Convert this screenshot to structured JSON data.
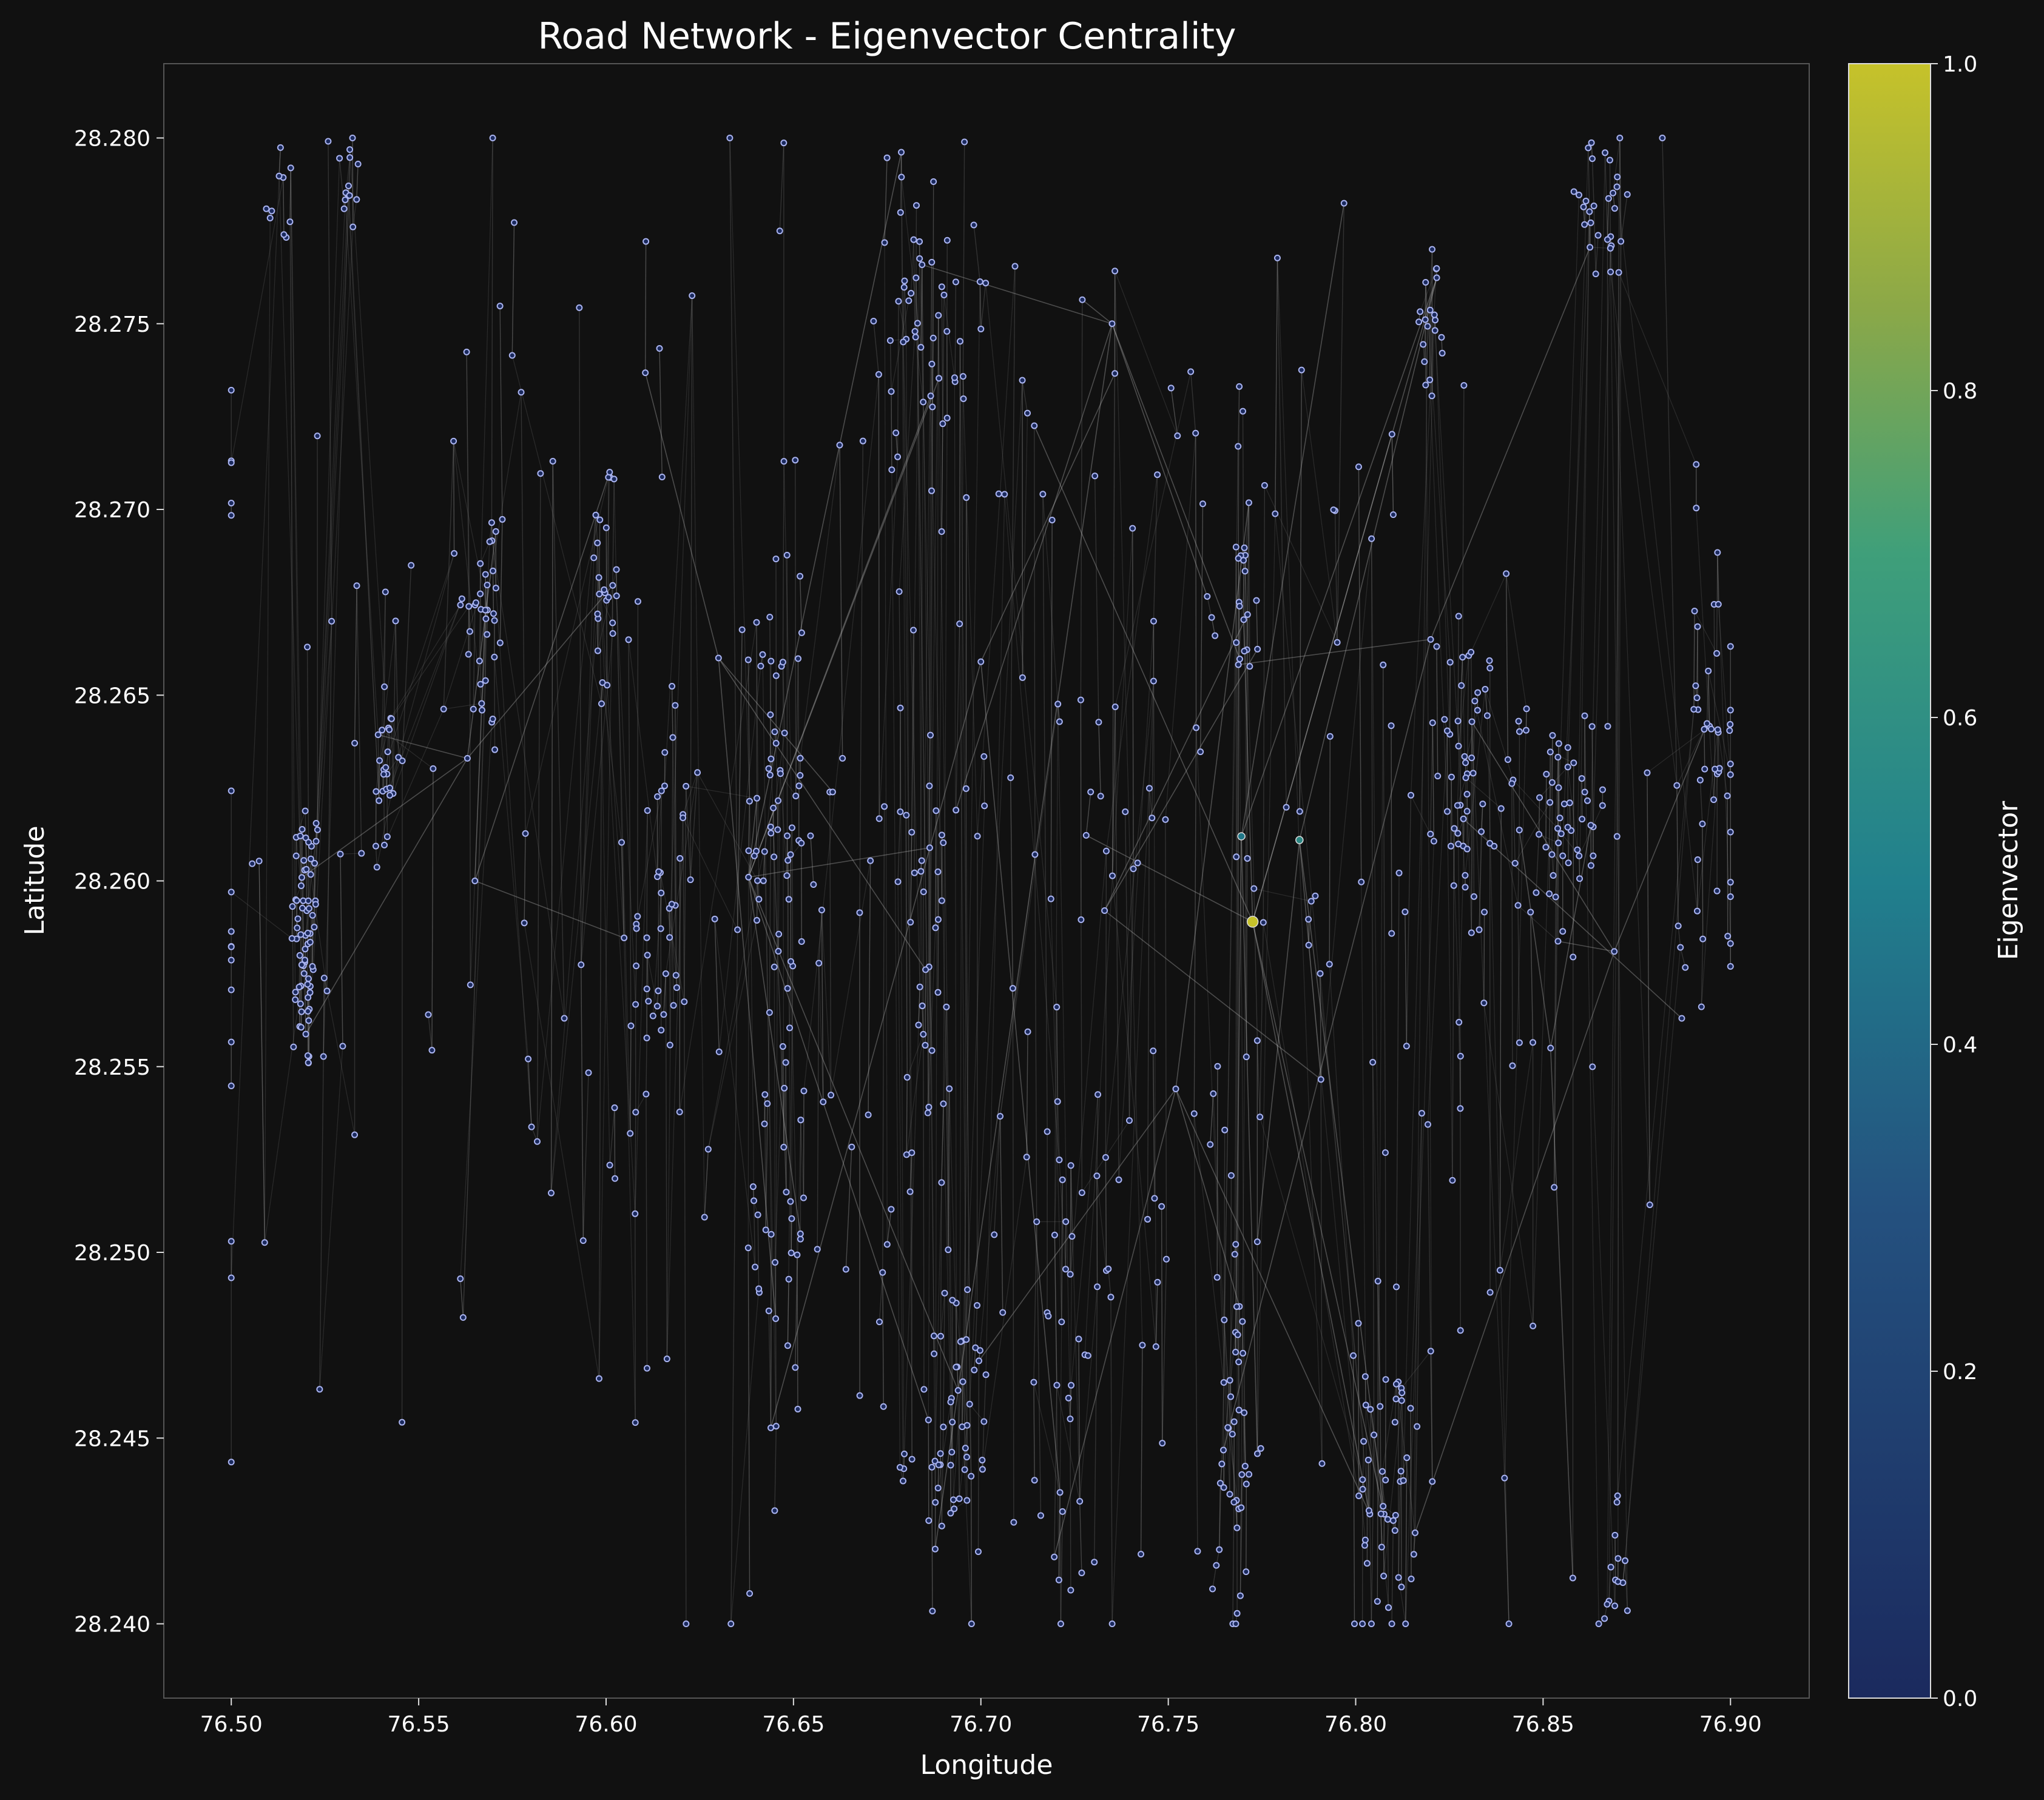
{
  "chart_data": {
    "type": "scatter",
    "title": "Road Network - Eigenvector Centrality",
    "xlabel": "Longitude",
    "ylabel": "Latitude",
    "xlim": [
      76.482,
      76.921
    ],
    "ylim": [
      28.238,
      28.282
    ],
    "x_ticks": [
      76.5,
      76.55,
      76.6,
      76.65,
      76.7,
      76.75,
      76.8,
      76.85,
      76.9
    ],
    "x_tick_labels": [
      "76.50",
      "76.55",
      "76.60",
      "76.65",
      "76.70",
      "76.75",
      "76.80",
      "76.85",
      "76.90"
    ],
    "y_ticks": [
      28.24,
      28.245,
      28.25,
      28.255,
      28.26,
      28.265,
      28.27,
      28.275,
      28.28
    ],
    "y_tick_labels": [
      "28.240",
      "28.245",
      "28.250",
      "28.255",
      "28.260",
      "28.265",
      "28.270",
      "28.275",
      "28.280"
    ],
    "grid": false,
    "colorbar": {
      "label": "Eigenvector",
      "range": [
        0.0,
        1.0
      ],
      "ticks": [
        0.0,
        0.2,
        0.4,
        0.6,
        0.8,
        1.0
      ],
      "tick_labels": [
        "0.0",
        "0.2",
        "0.4",
        "0.6",
        "0.8",
        "1.0"
      ],
      "colormap": "viridis-like (dark blue to yellow)",
      "colors": {
        "low": "#1b2a5e",
        "mid": "#21918c",
        "high": "#c6c22a"
      }
    },
    "node_color_default": "#aab4f0",
    "edge_color": "#888888",
    "highlighted_nodes": [
      {
        "x": 76.7725,
        "y": 28.2589,
        "value": 1.0
      },
      {
        "x": 76.785,
        "y": 28.2611,
        "value": 0.55
      },
      {
        "x": 76.7695,
        "y": 28.2612,
        "value": 0.45
      }
    ],
    "hub_nodes": [
      {
        "x": 76.63,
        "y": 28.266
      },
      {
        "x": 76.7,
        "y": 28.2659
      },
      {
        "x": 76.733,
        "y": 28.2592
      },
      {
        "x": 76.82,
        "y": 28.2665
      },
      {
        "x": 76.852,
        "y": 28.2555
      },
      {
        "x": 76.869,
        "y": 28.2581
      },
      {
        "x": 76.563,
        "y": 28.2633
      },
      {
        "x": 76.565,
        "y": 28.26
      },
      {
        "x": 76.735,
        "y": 28.275
      },
      {
        "x": 76.638,
        "y": 28.2601
      },
      {
        "x": 76.752,
        "y": 28.2544
      },
      {
        "x": 76.887,
        "y": 28.2563
      }
    ],
    "node_clusters": [
      {
        "x": 76.52,
        "y": 28.2585,
        "sx": 0.002,
        "sy": 0.002,
        "n": 70
      },
      {
        "x": 76.513,
        "y": 28.2785,
        "sx": 0.002,
        "sy": 0.001,
        "n": 10
      },
      {
        "x": 76.531,
        "y": 28.279,
        "sx": 0.002,
        "sy": 0.0008,
        "n": 14
      },
      {
        "x": 76.541,
        "y": 28.263,
        "sx": 0.002,
        "sy": 0.0015,
        "n": 25
      },
      {
        "x": 76.568,
        "y": 28.267,
        "sx": 0.003,
        "sy": 0.002,
        "n": 35
      },
      {
        "x": 76.6,
        "y": 28.268,
        "sx": 0.002,
        "sy": 0.002,
        "n": 25
      },
      {
        "x": 76.614,
        "y": 28.258,
        "sx": 0.004,
        "sy": 0.003,
        "n": 45
      },
      {
        "x": 76.645,
        "y": 28.262,
        "sx": 0.004,
        "sy": 0.004,
        "n": 55
      },
      {
        "x": 76.648,
        "y": 28.25,
        "sx": 0.004,
        "sy": 0.003,
        "n": 30
      },
      {
        "x": 76.684,
        "y": 28.276,
        "sx": 0.006,
        "sy": 0.002,
        "n": 45
      },
      {
        "x": 76.686,
        "y": 28.257,
        "sx": 0.003,
        "sy": 0.003,
        "n": 25
      },
      {
        "x": 76.692,
        "y": 28.245,
        "sx": 0.006,
        "sy": 0.002,
        "n": 55
      },
      {
        "x": 76.726,
        "y": 28.246,
        "sx": 0.005,
        "sy": 0.003,
        "n": 30
      },
      {
        "x": 76.77,
        "y": 28.268,
        "sx": 0.002,
        "sy": 0.002,
        "n": 20
      },
      {
        "x": 76.768,
        "y": 28.244,
        "sx": 0.003,
        "sy": 0.003,
        "n": 40
      },
      {
        "x": 76.808,
        "y": 28.244,
        "sx": 0.004,
        "sy": 0.0025,
        "n": 55
      },
      {
        "x": 76.82,
        "y": 28.275,
        "sx": 0.002,
        "sy": 0.001,
        "n": 20
      },
      {
        "x": 76.83,
        "y": 28.263,
        "sx": 0.004,
        "sy": 0.002,
        "n": 55
      },
      {
        "x": 76.855,
        "y": 28.261,
        "sx": 0.006,
        "sy": 0.002,
        "n": 55
      },
      {
        "x": 76.866,
        "y": 28.278,
        "sx": 0.006,
        "sy": 0.001,
        "n": 30
      },
      {
        "x": 76.895,
        "y": 28.264,
        "sx": 0.004,
        "sy": 0.003,
        "n": 40
      },
      {
        "x": 76.868,
        "y": 28.241,
        "sx": 0.002,
        "sy": 0.001,
        "n": 15
      },
      {
        "x": 76.7,
        "y": 28.26,
        "sx": 0.11,
        "sy": 0.01,
        "n": 360
      }
    ]
  }
}
